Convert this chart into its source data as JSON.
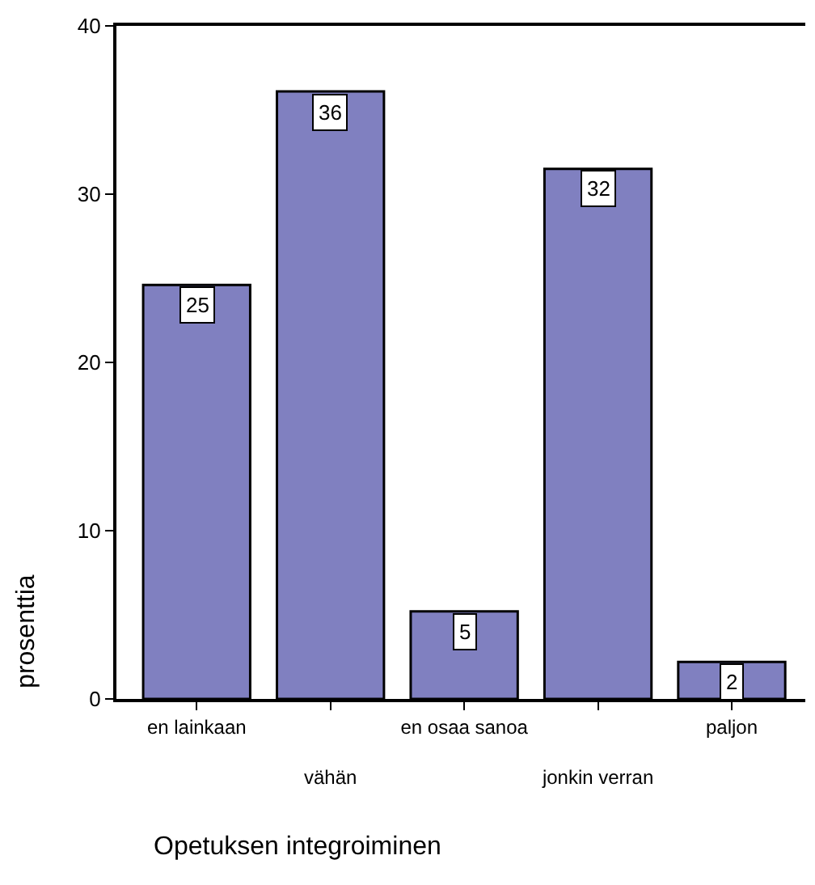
{
  "chart_data": {
    "type": "bar",
    "xlabel": "Opetuksen integroiminen",
    "ylabel": "prosenttia",
    "categories": [
      "en lainkaan",
      "vähän",
      "en osaa sanoa",
      "jonkin verran",
      "paljon"
    ],
    "values": [
      24.6,
      36.1,
      5.2,
      31.5,
      2.2
    ],
    "value_labels": [
      "25",
      "36",
      "5",
      "32",
      "2"
    ],
    "color": "#8080c0",
    "ylim": [
      0,
      40
    ],
    "yticks": [
      0,
      10,
      20,
      30,
      40
    ]
  }
}
